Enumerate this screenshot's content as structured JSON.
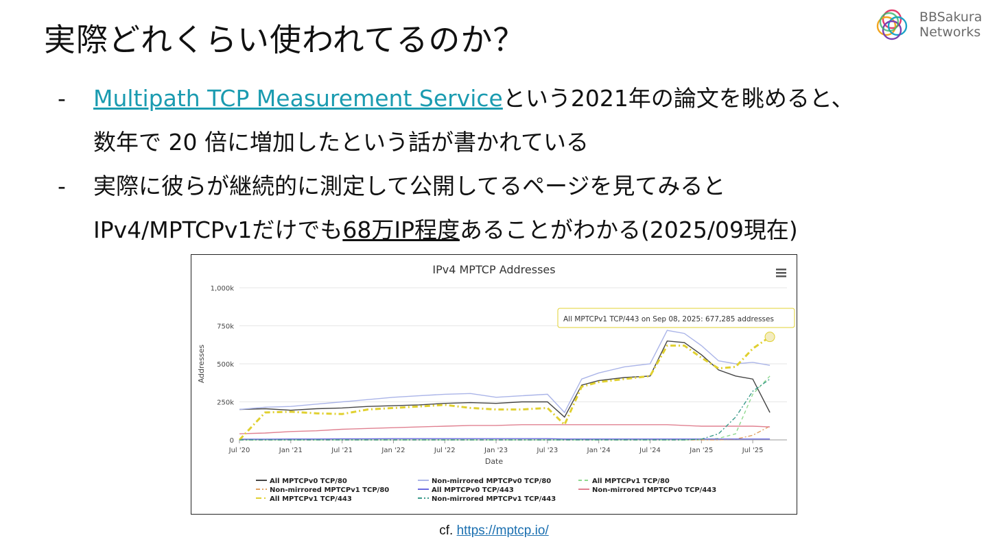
{
  "slide": {
    "title": "実際どれくらい使われてるのか？",
    "brand": {
      "line1": "BBSakura",
      "line2": "Networks"
    }
  },
  "bullets": [
    {
      "dash": "-",
      "link_text": "Multipath TCP Measurement Service",
      "rest": "という2021年の論文を眺めると、",
      "line2": "数年で 20 倍に増加したという話が書かれている"
    },
    {
      "dash": "-",
      "line1": "実際に彼らが継続的に測定して公開してるページを見てみると",
      "line2_prefix": "IPv4/MPTCPv1だけでも",
      "line2_underlined": "68万IP程度",
      "line2_suffix": "あることがわかる(2025/09現在)"
    }
  ],
  "footer": {
    "cf_prefix": "cf. ",
    "link": "https://mptcp.io/"
  },
  "chart_data": {
    "type": "line",
    "title": "IPv4 MPTCP Addresses",
    "xlabel": "Date",
    "ylabel": "Addresses",
    "ylim": [
      0,
      1000000
    ],
    "yticks": [
      "0",
      "250k",
      "500k",
      "750k",
      "1,000k"
    ],
    "xticks": [
      "Jul '20",
      "Jan '21",
      "Jul '21",
      "Jan '22",
      "Jul '22",
      "Jan '23",
      "Jul '23",
      "Jan '24",
      "Jul '24",
      "Jan '25",
      "Jul '25"
    ],
    "menu_icon": "hamburger-menu-icon",
    "tooltip": "All MPTCPv1 TCP/443 on Sep 08, 2025: 677,285 addresses",
    "grid": true,
    "legend_position": "bottom",
    "x": [
      "2020-07",
      "2020-10",
      "2021-01",
      "2021-04",
      "2021-07",
      "2021-10",
      "2022-01",
      "2022-04",
      "2022-07",
      "2022-10",
      "2023-01",
      "2023-04",
      "2023-07",
      "2023-09",
      "2023-11",
      "2024-01",
      "2024-04",
      "2024-07",
      "2024-09",
      "2024-11",
      "2025-01",
      "2025-03",
      "2025-05",
      "2025-07",
      "2025-09"
    ],
    "series": [
      {
        "name": "All MPTCPv0 TCP/80",
        "color": "#444444",
        "dash": "",
        "values": [
          200000,
          205000,
          195000,
          205000,
          210000,
          220000,
          225000,
          230000,
          240000,
          245000,
          240000,
          250000,
          250000,
          150000,
          360000,
          390000,
          410000,
          420000,
          650000,
          640000,
          560000,
          460000,
          420000,
          400000,
          180000
        ]
      },
      {
        "name": "Non-mirrored MPTCPv0 TCP/80",
        "color": "#aab4e8",
        "dash": "",
        "values": [
          200000,
          215000,
          220000,
          235000,
          250000,
          265000,
          280000,
          290000,
          300000,
          305000,
          280000,
          290000,
          300000,
          180000,
          400000,
          440000,
          480000,
          500000,
          720000,
          700000,
          620000,
          520000,
          500000,
          510000,
          490000
        ]
      },
      {
        "name": "All MPTCPv1 TCP/80",
        "color": "#8fd88f",
        "dash": "5,4",
        "values": [
          0,
          0,
          0,
          0,
          0,
          0,
          0,
          0,
          0,
          0,
          0,
          0,
          0,
          0,
          0,
          0,
          0,
          0,
          0,
          0,
          0,
          10000,
          40000,
          300000,
          420000
        ]
      },
      {
        "name": "Non-mirrored MPTCPv1 TCP/80",
        "color": "#e0a060",
        "dash": "6,3,2,3",
        "values": [
          0,
          0,
          0,
          0,
          0,
          0,
          0,
          0,
          0,
          0,
          0,
          0,
          0,
          0,
          0,
          0,
          0,
          0,
          0,
          0,
          0,
          0,
          5000,
          30000,
          90000
        ]
      },
      {
        "name": "All MPTCPv0 TCP/443",
        "color": "#6a6ae0",
        "dash": "",
        "values": [
          5000,
          5000,
          6000,
          6000,
          7000,
          7000,
          8000,
          8000,
          8000,
          8000,
          8000,
          8000,
          8000,
          6000,
          6000,
          6000,
          6000,
          6000,
          6000,
          6000,
          6000,
          6000,
          6000,
          6000,
          6000
        ]
      },
      {
        "name": "Non-mirrored MPTCPv0 TCP/443",
        "color": "#e08090",
        "dash": "",
        "values": [
          40000,
          45000,
          55000,
          60000,
          70000,
          75000,
          80000,
          85000,
          90000,
          95000,
          95000,
          100000,
          100000,
          100000,
          100000,
          100000,
          100000,
          100000,
          100000,
          95000,
          90000,
          90000,
          90000,
          90000,
          85000
        ]
      },
      {
        "name": "All MPTCPv1 TCP/443",
        "color": "#e0d030",
        "dash": "8,4,2,4",
        "values": [
          0,
          180000,
          185000,
          175000,
          170000,
          200000,
          210000,
          220000,
          230000,
          210000,
          200000,
          200000,
          210000,
          100000,
          350000,
          380000,
          400000,
          420000,
          620000,
          620000,
          540000,
          470000,
          480000,
          600000,
          677285
        ]
      },
      {
        "name": "Non-mirrored MPTCPv1 TCP/443",
        "color": "#3a9a8a",
        "dash": "6,3,2,3",
        "values": [
          0,
          0,
          0,
          0,
          0,
          0,
          0,
          0,
          0,
          0,
          0,
          0,
          0,
          0,
          0,
          0,
          0,
          0,
          0,
          0,
          5000,
          40000,
          150000,
          320000,
          400000
        ]
      }
    ]
  }
}
